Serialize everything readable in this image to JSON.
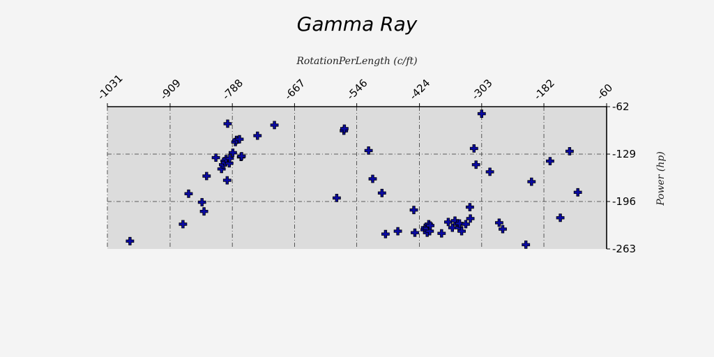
{
  "chart_data": {
    "type": "scatter",
    "title": "Gamma Ray",
    "xlabel": "RotationPerLength (c/ft)",
    "ylabel": "Power (hp)",
    "xlim": [
      -1031,
      -60
    ],
    "ylim": [
      -263,
      -62
    ],
    "x_ticks": [
      -1031,
      -909,
      -788,
      -667,
      -546,
      -424,
      -303,
      -182,
      -60
    ],
    "x_tick_labels": [
      "-1031",
      "-909",
      "-788",
      "-667",
      "-546",
      "-424",
      "-303",
      "-182",
      "-60"
    ],
    "y_ticks": [
      -62,
      -129,
      -196,
      -263
    ],
    "y_tick_labels": [
      "-62",
      "-129",
      "-196",
      "-263"
    ],
    "x_axis_position": "top",
    "y_axis_position": "right",
    "grid": true,
    "marker": "plus",
    "colors": {
      "marker_fill": "#0a0aa0",
      "marker_edge": "#000000",
      "plot_background": "#dcdcdc",
      "page_background": "#f4f4f4",
      "grid": "#333333"
    },
    "series": [
      {
        "x": [
          -987,
          -884,
          -873,
          -847,
          -843,
          -838,
          -820,
          -809,
          -806,
          -803,
          -802,
          -800,
          -798,
          -797,
          -794,
          -793,
          -787,
          -782,
          -780,
          -774,
          -771,
          -770,
          -739,
          -706,
          -585,
          -571,
          -570,
          -523,
          -515,
          -497,
          -490,
          -466,
          -435,
          -433,
          -414,
          -413,
          -409,
          -409,
          -406,
          -404,
          -403,
          -381,
          -368,
          -360,
          -355,
          -350,
          -347,
          -346,
          -342,
          -334,
          -326,
          -325,
          -318,
          -314,
          -303,
          -287,
          -269,
          -262,
          -206,
          -217,
          -170,
          -150,
          -132,
          -116
        ],
        "y": [
          -252,
          -228,
          -185,
          -197,
          -210,
          -160,
          -134,
          -150,
          -144,
          -139,
          -141,
          -136,
          -166,
          -86,
          -142,
          -135,
          -127,
          -112,
          -109,
          -108,
          -133,
          -132,
          -103,
          -88,
          -191,
          -96,
          -93,
          -124,
          -164,
          -184,
          -242,
          -238,
          -208,
          -240,
          -236,
          -233,
          -240,
          -234,
          -228,
          -238,
          -230,
          -241,
          -225,
          -233,
          -223,
          -228,
          -233,
          -227,
          -238,
          -228,
          -204,
          -220,
          -121,
          -144,
          -72,
          -154,
          -226,
          -235,
          -168,
          -257,
          -139,
          -219,
          -125,
          -183
        ]
      }
    ]
  }
}
